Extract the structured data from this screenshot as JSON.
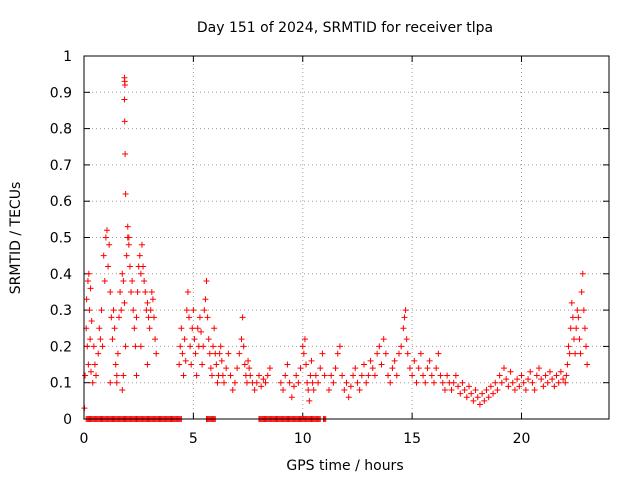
{
  "chart_data": {
    "type": "scatter",
    "title": "Day 151 of 2024, SRMTID for receiver tlpa",
    "xlabel": "GPS time / hours",
    "ylabel": "SRMTID / TECUs",
    "xlim": [
      0,
      24
    ],
    "ylim": [
      0,
      1
    ],
    "xticks": [
      0,
      5,
      10,
      15,
      20
    ],
    "xtick_labels": [
      "0",
      "5",
      "10",
      "15",
      "20"
    ],
    "yticks": [
      0,
      0.1,
      0.2,
      0.3,
      0.4,
      0.5,
      0.6,
      0.7,
      0.8,
      0.9,
      1
    ],
    "ytick_labels": [
      "0",
      "0.1",
      "0.2",
      "0.3",
      "0.4",
      "0.5",
      "0.6",
      "0.7",
      "0.8",
      "0.9",
      "1"
    ],
    "grid": true,
    "marker": "+",
    "color": "#ff0000",
    "series": [
      {
        "name": "SRMTID",
        "points": [
          [
            0.02,
            0.03
          ],
          [
            0.05,
            0.12
          ],
          [
            0.1,
            0.25
          ],
          [
            0.12,
            0.33
          ],
          [
            0.15,
            0.2
          ],
          [
            0.18,
            0.38
          ],
          [
            0.2,
            0.15
          ],
          [
            0.22,
            0.4
          ],
          [
            0.25,
            0.3
          ],
          [
            0.28,
            0.22
          ],
          [
            0.3,
            0.36
          ],
          [
            0.32,
            0.13
          ],
          [
            0.35,
            0.27
          ],
          [
            0.4,
            0.1
          ],
          [
            0.45,
            0.2
          ],
          [
            0.5,
            0.15
          ],
          [
            0.55,
            0.12
          ],
          [
            0.65,
            0.18
          ],
          [
            0.7,
            0.25
          ],
          [
            0.75,
            0.22
          ],
          [
            0.8,
            0.3
          ],
          [
            0.85,
            0.2
          ],
          [
            0.9,
            0.45
          ],
          [
            0.95,
            0.38
          ],
          [
            1.0,
            0.5
          ],
          [
            1.05,
            0.52
          ],
          [
            1.1,
            0.42
          ],
          [
            1.15,
            0.48
          ],
          [
            1.2,
            0.35
          ],
          [
            1.25,
            0.28
          ],
          [
            1.3,
            0.22
          ],
          [
            1.35,
            0.3
          ],
          [
            1.4,
            0.25
          ],
          [
            1.45,
            0.15
          ],
          [
            1.5,
            0.12
          ],
          [
            1.55,
            0.18
          ],
          [
            1.6,
            0.28
          ],
          [
            1.65,
            0.35
          ],
          [
            1.7,
            0.3
          ],
          [
            1.75,
            0.4
          ],
          [
            1.8,
            0.38
          ],
          [
            1.85,
            0.32
          ],
          [
            1.9,
            0.2
          ],
          [
            1.95,
            0.45
          ],
          [
            2.0,
            0.5
          ],
          [
            2.05,
            0.48
          ],
          [
            2.1,
            0.42
          ],
          [
            2.15,
            0.35
          ],
          [
            2.2,
            0.38
          ],
          [
            2.25,
            0.3
          ],
          [
            2.3,
            0.25
          ],
          [
            2.35,
            0.2
          ],
          [
            2.4,
            0.28
          ],
          [
            2.45,
            0.35
          ],
          [
            2.5,
            0.42
          ],
          [
            2.55,
            0.45
          ],
          [
            2.6,
            0.4
          ],
          [
            2.65,
            0.48
          ],
          [
            2.7,
            0.42
          ],
          [
            2.75,
            0.38
          ],
          [
            2.8,
            0.35
          ],
          [
            2.85,
            0.3
          ],
          [
            2.9,
            0.32
          ],
          [
            2.95,
            0.28
          ],
          [
            3.0,
            0.25
          ],
          [
            3.05,
            0.3
          ],
          [
            3.1,
            0.35
          ],
          [
            3.15,
            0.33
          ],
          [
            3.2,
            0.28
          ],
          [
            3.25,
            0.22
          ],
          [
            3.3,
            0.18
          ],
          [
            1.85,
            0.94
          ],
          [
            1.86,
            0.93
          ],
          [
            1.87,
            0.92
          ],
          [
            1.85,
            0.88
          ],
          [
            1.86,
            0.82
          ],
          [
            1.88,
            0.73
          ],
          [
            1.9,
            0.62
          ],
          [
            2.0,
            0.53
          ],
          [
            2.05,
            0.5
          ],
          [
            1.8,
            0.12
          ],
          [
            1.75,
            0.08
          ],
          [
            1.5,
            0.1
          ],
          [
            1.2,
            0.1
          ],
          [
            2.4,
            0.12
          ],
          [
            2.6,
            0.2
          ],
          [
            2.9,
            0.15
          ],
          [
            4.35,
            0.15
          ],
          [
            4.4,
            0.2
          ],
          [
            4.45,
            0.25
          ],
          [
            4.5,
            0.18
          ],
          [
            4.55,
            0.12
          ],
          [
            4.6,
            0.22
          ],
          [
            4.65,
            0.16
          ],
          [
            4.7,
            0.3
          ],
          [
            4.75,
            0.35
          ],
          [
            4.8,
            0.28
          ],
          [
            4.85,
            0.2
          ],
          [
            4.9,
            0.15
          ],
          [
            4.95,
            0.25
          ],
          [
            5.0,
            0.3
          ],
          [
            5.05,
            0.22
          ],
          [
            5.1,
            0.18
          ],
          [
            5.15,
            0.12
          ],
          [
            5.2,
            0.25
          ],
          [
            5.25,
            0.2
          ],
          [
            5.3,
            0.28
          ],
          [
            5.35,
            0.24
          ],
          [
            5.4,
            0.15
          ],
          [
            5.45,
            0.2
          ],
          [
            5.5,
            0.3
          ],
          [
            5.55,
            0.33
          ],
          [
            5.6,
            0.38
          ],
          [
            5.65,
            0.28
          ],
          [
            5.7,
            0.22
          ],
          [
            5.75,
            0.18
          ],
          [
            5.8,
            0.14
          ],
          [
            5.85,
            0.12
          ],
          [
            5.9,
            0.2
          ],
          [
            5.95,
            0.25
          ],
          [
            6.0,
            0.18
          ],
          [
            6.05,
            0.15
          ],
          [
            6.1,
            0.1
          ],
          [
            6.15,
            0.12
          ],
          [
            6.2,
            0.18
          ],
          [
            6.25,
            0.2
          ],
          [
            6.3,
            0.16
          ],
          [
            6.35,
            0.12
          ],
          [
            6.4,
            0.1
          ],
          [
            6.5,
            0.14
          ],
          [
            6.6,
            0.18
          ],
          [
            6.7,
            0.12
          ],
          [
            6.8,
            0.08
          ],
          [
            6.9,
            0.1
          ],
          [
            7.0,
            0.14
          ],
          [
            7.1,
            0.18
          ],
          [
            7.2,
            0.22
          ],
          [
            7.25,
            0.28
          ],
          [
            7.3,
            0.2
          ],
          [
            7.35,
            0.15
          ],
          [
            7.4,
            0.12
          ],
          [
            7.45,
            0.1
          ],
          [
            7.5,
            0.16
          ],
          [
            7.55,
            0.14
          ],
          [
            7.6,
            0.12
          ],
          [
            7.7,
            0.1
          ],
          [
            7.8,
            0.08
          ],
          [
            7.9,
            0.1
          ],
          [
            8.0,
            0.12
          ],
          [
            8.1,
            0.09
          ],
          [
            8.2,
            0.11
          ],
          [
            8.3,
            0.1
          ],
          [
            8.4,
            0.12
          ],
          [
            8.5,
            0.14
          ],
          [
            9.0,
            0.1
          ],
          [
            9.1,
            0.08
          ],
          [
            9.2,
            0.12
          ],
          [
            9.3,
            0.15
          ],
          [
            9.4,
            0.1
          ],
          [
            9.5,
            0.06
          ],
          [
            9.6,
            0.09
          ],
          [
            9.7,
            0.12
          ],
          [
            9.8,
            0.1
          ],
          [
            9.9,
            0.14
          ],
          [
            10.0,
            0.2
          ],
          [
            10.05,
            0.18
          ],
          [
            10.1,
            0.22
          ],
          [
            10.15,
            0.15
          ],
          [
            10.2,
            0.1
          ],
          [
            10.25,
            0.08
          ],
          [
            10.3,
            0.05
          ],
          [
            10.35,
            0.12
          ],
          [
            10.4,
            0.16
          ],
          [
            10.45,
            0.1
          ],
          [
            10.5,
            0.08
          ],
          [
            10.6,
            0.12
          ],
          [
            10.7,
            0.1
          ],
          [
            10.8,
            0.14
          ],
          [
            10.9,
            0.18
          ],
          [
            11.0,
            0.12
          ],
          [
            11.2,
            0.08
          ],
          [
            11.3,
            0.12
          ],
          [
            11.4,
            0.1
          ],
          [
            11.5,
            0.14
          ],
          [
            11.6,
            0.18
          ],
          [
            11.7,
            0.2
          ],
          [
            11.8,
            0.12
          ],
          [
            11.9,
            0.08
          ],
          [
            12.0,
            0.1
          ],
          [
            12.1,
            0.06
          ],
          [
            12.2,
            0.09
          ],
          [
            12.3,
            0.12
          ],
          [
            12.4,
            0.14
          ],
          [
            12.5,
            0.1
          ],
          [
            12.6,
            0.08
          ],
          [
            12.7,
            0.12
          ],
          [
            12.8,
            0.15
          ],
          [
            12.9,
            0.1
          ],
          [
            13.0,
            0.12
          ],
          [
            13.1,
            0.16
          ],
          [
            13.2,
            0.14
          ],
          [
            13.3,
            0.12
          ],
          [
            13.4,
            0.18
          ],
          [
            13.5,
            0.2
          ],
          [
            13.6,
            0.15
          ],
          [
            13.7,
            0.22
          ],
          [
            13.8,
            0.18
          ],
          [
            13.9,
            0.12
          ],
          [
            14.0,
            0.1
          ],
          [
            14.1,
            0.14
          ],
          [
            14.2,
            0.16
          ],
          [
            14.3,
            0.12
          ],
          [
            14.4,
            0.18
          ],
          [
            14.5,
            0.2
          ],
          [
            14.6,
            0.25
          ],
          [
            14.65,
            0.28
          ],
          [
            14.7,
            0.3
          ],
          [
            14.75,
            0.22
          ],
          [
            14.8,
            0.18
          ],
          [
            14.9,
            0.14
          ],
          [
            15.0,
            0.12
          ],
          [
            15.1,
            0.16
          ],
          [
            15.2,
            0.1
          ],
          [
            15.3,
            0.14
          ],
          [
            15.4,
            0.18
          ],
          [
            15.5,
            0.12
          ],
          [
            15.6,
            0.1
          ],
          [
            15.7,
            0.14
          ],
          [
            15.8,
            0.16
          ],
          [
            15.9,
            0.12
          ],
          [
            16.0,
            0.1
          ],
          [
            16.1,
            0.14
          ],
          [
            16.2,
            0.18
          ],
          [
            16.3,
            0.12
          ],
          [
            16.4,
            0.1
          ],
          [
            16.5,
            0.08
          ],
          [
            16.6,
            0.12
          ],
          [
            16.7,
            0.1
          ],
          [
            16.8,
            0.08
          ],
          [
            16.9,
            0.1
          ],
          [
            17.0,
            0.12
          ],
          [
            17.1,
            0.09
          ],
          [
            17.2,
            0.07
          ],
          [
            17.3,
            0.1
          ],
          [
            17.4,
            0.08
          ],
          [
            17.5,
            0.06
          ],
          [
            17.6,
            0.09
          ],
          [
            17.7,
            0.07
          ],
          [
            17.8,
            0.05
          ],
          [
            17.9,
            0.08
          ],
          [
            18.0,
            0.06
          ],
          [
            18.1,
            0.04
          ],
          [
            18.2,
            0.07
          ],
          [
            18.3,
            0.05
          ],
          [
            18.4,
            0.08
          ],
          [
            18.5,
            0.06
          ],
          [
            18.6,
            0.09
          ],
          [
            18.7,
            0.07
          ],
          [
            18.8,
            0.1
          ],
          [
            18.9,
            0.08
          ],
          [
            19.0,
            0.12
          ],
          [
            19.1,
            0.1
          ],
          [
            19.2,
            0.14
          ],
          [
            19.3,
            0.11
          ],
          [
            19.4,
            0.09
          ],
          [
            19.5,
            0.13
          ],
          [
            19.6,
            0.1
          ],
          [
            19.7,
            0.08
          ],
          [
            19.8,
            0.11
          ],
          [
            19.9,
            0.09
          ],
          [
            20.0,
            0.12
          ],
          [
            20.1,
            0.1
          ],
          [
            20.2,
            0.08
          ],
          [
            20.3,
            0.11
          ],
          [
            20.4,
            0.13
          ],
          [
            20.5,
            0.1
          ],
          [
            20.6,
            0.08
          ],
          [
            20.7,
            0.12
          ],
          [
            20.8,
            0.14
          ],
          [
            20.9,
            0.11
          ],
          [
            21.0,
            0.09
          ],
          [
            21.1,
            0.12
          ],
          [
            21.2,
            0.1
          ],
          [
            21.3,
            0.13
          ],
          [
            21.4,
            0.11
          ],
          [
            21.5,
            0.09
          ],
          [
            21.6,
            0.12
          ],
          [
            21.7,
            0.1
          ],
          [
            21.8,
            0.13
          ],
          [
            21.9,
            0.11
          ],
          [
            22.0,
            0.1
          ],
          [
            22.05,
            0.12
          ],
          [
            22.1,
            0.15
          ],
          [
            22.15,
            0.2
          ],
          [
            22.2,
            0.18
          ],
          [
            22.25,
            0.25
          ],
          [
            22.3,
            0.32
          ],
          [
            22.35,
            0.28
          ],
          [
            22.4,
            0.22
          ],
          [
            22.45,
            0.18
          ],
          [
            22.5,
            0.25
          ],
          [
            22.55,
            0.3
          ],
          [
            22.6,
            0.28
          ],
          [
            22.65,
            0.22
          ],
          [
            22.7,
            0.18
          ],
          [
            22.75,
            0.35
          ],
          [
            22.8,
            0.4
          ],
          [
            22.85,
            0.3
          ],
          [
            22.9,
            0.25
          ],
          [
            22.95,
            0.2
          ],
          [
            23.0,
            0.15
          ]
        ]
      }
    ],
    "zero_ranges": [
      [
        0.1,
        4.45
      ],
      [
        5.6,
        6.0
      ],
      [
        8.0,
        10.8
      ],
      [
        10.95,
        11.05
      ]
    ]
  }
}
